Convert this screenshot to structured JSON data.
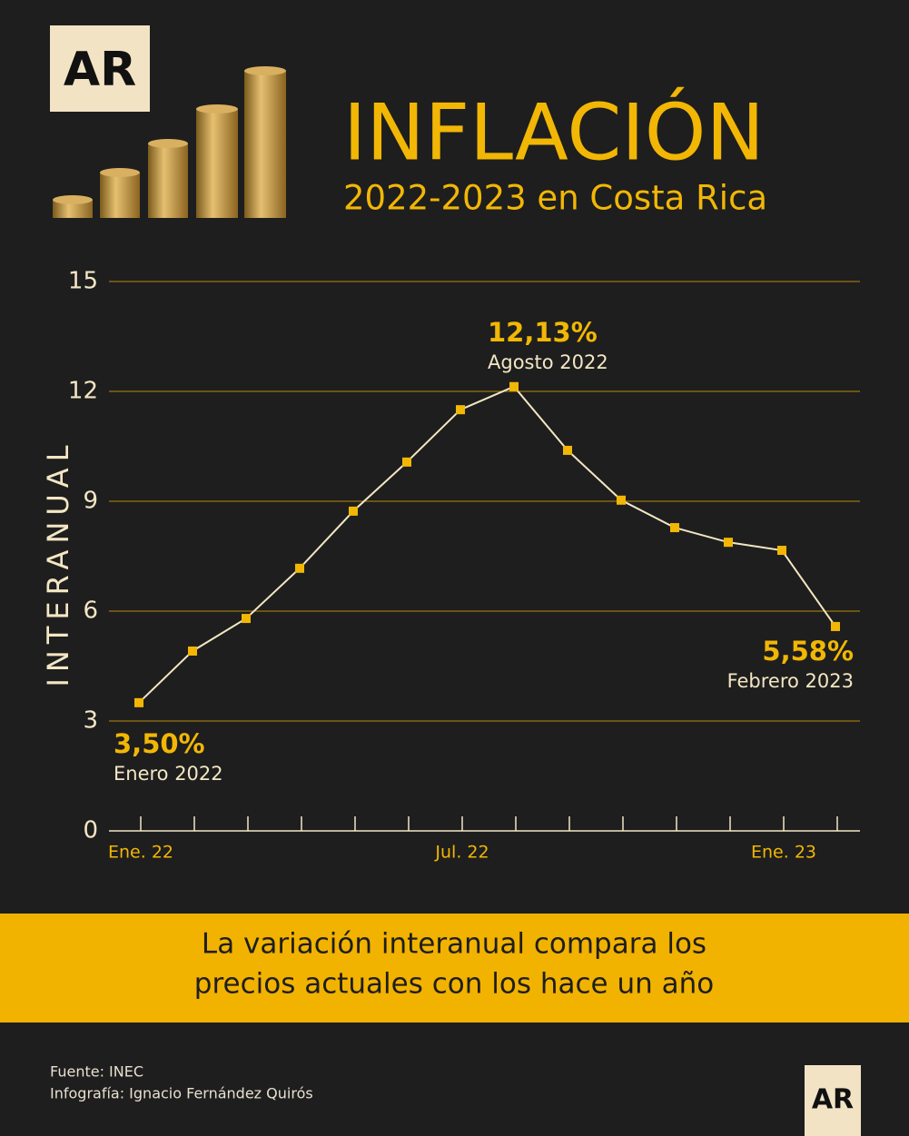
{
  "logo": "AR",
  "chart_data": {
    "type": "line",
    "title": "INFLACIÓN",
    "subtitle": "2022-2023 en Costa Rica",
    "y_label": "INTERANUAL",
    "categories": [
      "Ene. 22",
      null,
      null,
      null,
      null,
      null,
      "Jul. 22",
      null,
      null,
      null,
      null,
      null,
      "Ene. 23",
      null
    ],
    "values": [
      3.5,
      4.91,
      5.8,
      7.17,
      8.73,
      10.07,
      11.5,
      12.13,
      10.39,
      9.03,
      8.28,
      7.88,
      7.66,
      5.58
    ],
    "value_labels": [
      "3,50%",
      null,
      null,
      null,
      null,
      null,
      null,
      "12,13%",
      null,
      null,
      null,
      null,
      null,
      "5,58%"
    ],
    "point_notes": [
      "Enero 2022",
      null,
      null,
      null,
      null,
      null,
      null,
      "Agosto 2022",
      null,
      null,
      null,
      null,
      null,
      "Febrero 2023"
    ],
    "color": "#f3e6c4",
    "marker_color": "#f2b705",
    "ylim": [
      0,
      15
    ],
    "yticks": [
      0,
      3,
      6,
      9,
      12,
      15
    ],
    "grid": true
  },
  "banner": {
    "lines": [
      "La variación interanual compara los",
      "precios actuales con los hace un año"
    ]
  },
  "footer": {
    "source": "Fuente: INEC",
    "credit": "Infografía: Ignacio Fernández Quirós"
  }
}
